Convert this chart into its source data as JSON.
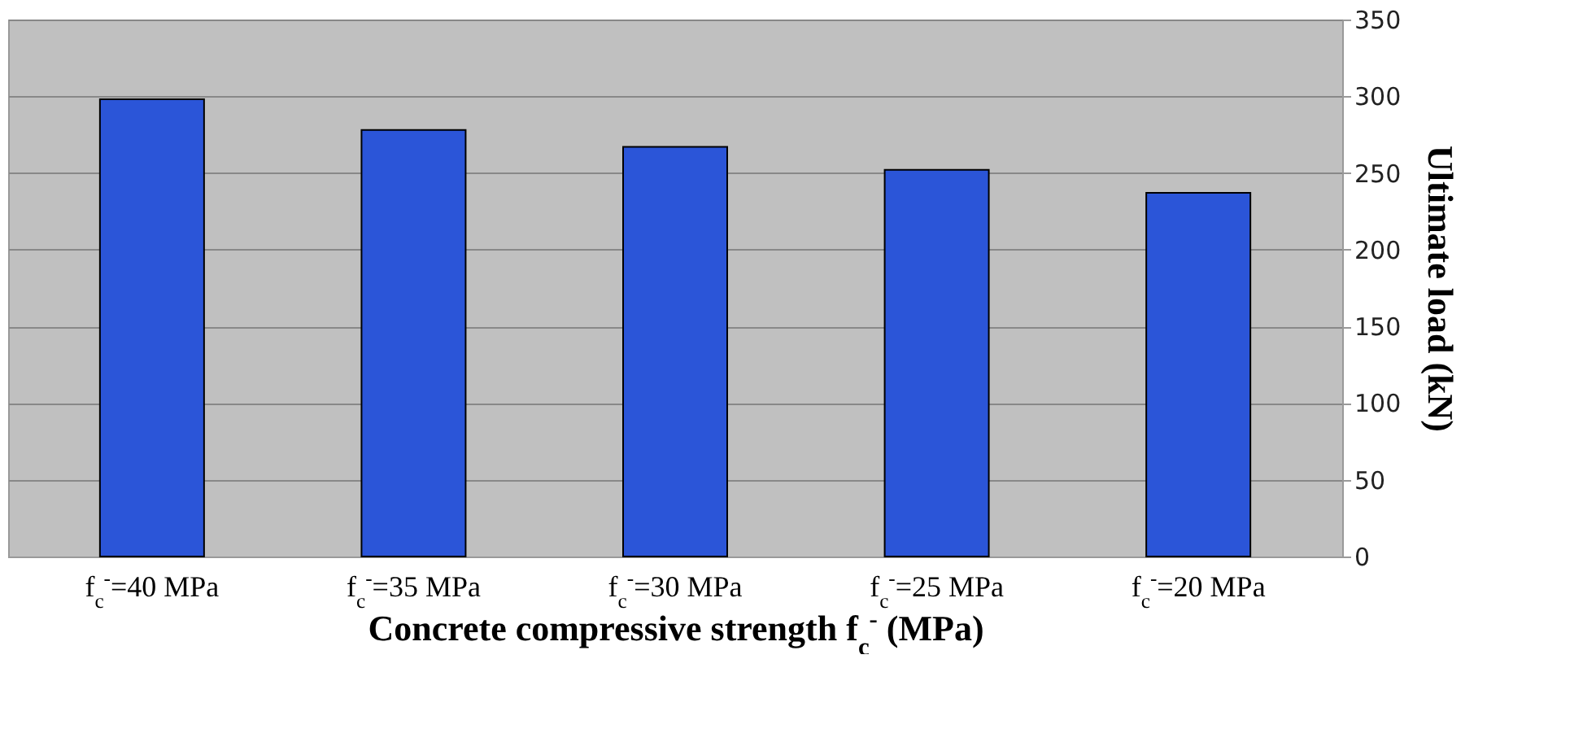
{
  "chart_data": {
    "type": "bar",
    "xlabel": "Concrete compressive strength f$_{c}$$^{-}$ (MPa)",
    "ylabel": "Ultimate load (kN)",
    "categories": [
      "f$_{c}$$^{-}$=40 MPa",
      "f$_{c}$$^{-}$=35 MPa",
      "f$_{c}$$^{-}$=30 MPa",
      "f$_{c}$$^{-}$=25 MPa",
      "f$_{c}$$^{-}$=20 MPa"
    ],
    "values": [
      298,
      278,
      267,
      252,
      237
    ],
    "color": "#2b55d8",
    "ylim": [
      0,
      350
    ],
    "yticks": [
      0,
      50,
      100,
      150,
      200,
      250,
      300,
      350
    ],
    "grid": "y"
  }
}
